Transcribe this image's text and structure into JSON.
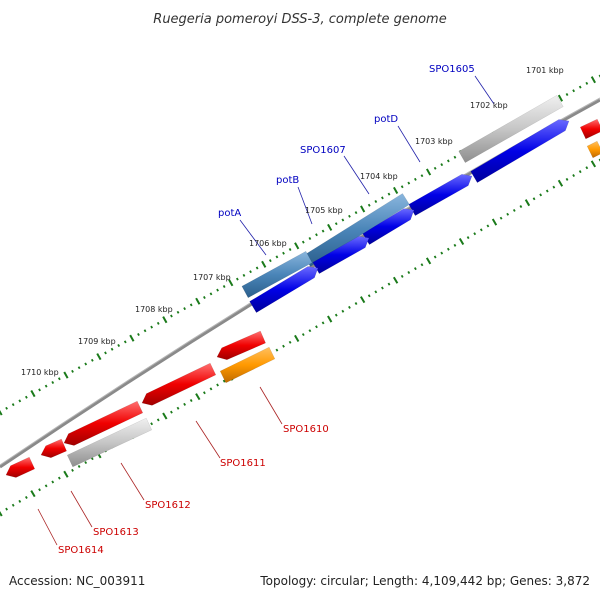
{
  "title": "Ruegeria pomeroyi DSS-3, complete genome",
  "footer": {
    "accession": "Accession: NC_003911",
    "summary": "Topology: circular; Length: 4,109,442 bp; Genes: 3,872"
  },
  "colors": {
    "forward_gene": "#0000e0",
    "reverse_gene": "#ee0000",
    "highlighted_gene": "#4a85b8",
    "rna_or_other": "#bdbdbd",
    "pseudo_or_special": "#ff9900",
    "backbone": "#808080",
    "ticks": "#1a7a1a",
    "forward_label": "#0000c0",
    "reverse_label": "#cc0000"
  },
  "chart_data": {
    "type": "circular-genome-map",
    "scale_unit": "kbp",
    "tick_labels": [
      "1701 kbp",
      "1702 kbp",
      "1703 kbp",
      "1704 kbp",
      "1705 kbp",
      "1706 kbp",
      "1707 kbp",
      "1708 kbp",
      "1709 kbp",
      "1710 kbp"
    ],
    "forward_labels": [
      {
        "name": "SPO1605"
      },
      {
        "name": "potD"
      },
      {
        "name": "SPO1607"
      },
      {
        "name": "potB"
      },
      {
        "name": "potA"
      }
    ],
    "reverse_labels": [
      {
        "name": "SPO1610"
      },
      {
        "name": "SPO1611"
      },
      {
        "name": "SPO1612"
      },
      {
        "name": "SPO1613"
      },
      {
        "name": "SPO1614"
      }
    ]
  }
}
